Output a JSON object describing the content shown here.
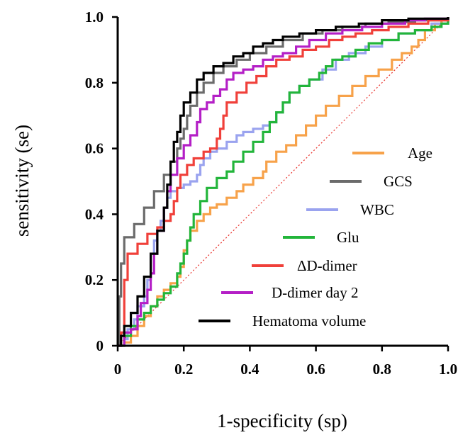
{
  "chart_data": {
    "type": "line",
    "title": "",
    "xlabel": "1-specificity (sp)",
    "ylabel": "sensitivity (se)",
    "xlim": [
      0,
      1
    ],
    "ylim": [
      0,
      1
    ],
    "x_ticks": [
      "0",
      "0.2",
      "0.4",
      "0.6",
      "0.8",
      "1.0"
    ],
    "y_ticks": [
      "0",
      "0.2",
      "0.4",
      "0.6",
      "0.8",
      "1.0"
    ],
    "grid": false,
    "legend_position": "bottom-right",
    "reference_line": {
      "from": [
        0,
        0
      ],
      "to": [
        1,
        1
      ],
      "color": "#e8302a",
      "style": "dotted"
    },
    "series": [
      {
        "name": "Age",
        "color": "#f7a24a",
        "points": [
          [
            0,
            0
          ],
          [
            0.02,
            0.01
          ],
          [
            0.04,
            0.03
          ],
          [
            0.06,
            0.06
          ],
          [
            0.08,
            0.09
          ],
          [
            0.1,
            0.12
          ],
          [
            0.12,
            0.15
          ],
          [
            0.14,
            0.17
          ],
          [
            0.16,
            0.19
          ],
          [
            0.18,
            0.21
          ],
          [
            0.19,
            0.24
          ],
          [
            0.2,
            0.26
          ],
          [
            0.2,
            0.29
          ],
          [
            0.21,
            0.32
          ],
          [
            0.22,
            0.35
          ],
          [
            0.24,
            0.38
          ],
          [
            0.26,
            0.4
          ],
          [
            0.28,
            0.42
          ],
          [
            0.3,
            0.43
          ],
          [
            0.33,
            0.45
          ],
          [
            0.36,
            0.47
          ],
          [
            0.38,
            0.49
          ],
          [
            0.41,
            0.51
          ],
          [
            0.44,
            0.53
          ],
          [
            0.45,
            0.56
          ],
          [
            0.48,
            0.59
          ],
          [
            0.51,
            0.61
          ],
          [
            0.54,
            0.64
          ],
          [
            0.57,
            0.67
          ],
          [
            0.6,
            0.7
          ],
          [
            0.63,
            0.73
          ],
          [
            0.67,
            0.76
          ],
          [
            0.71,
            0.79
          ],
          [
            0.75,
            0.82
          ],
          [
            0.79,
            0.84
          ],
          [
            0.83,
            0.87
          ],
          [
            0.86,
            0.89
          ],
          [
            0.89,
            0.91
          ],
          [
            0.91,
            0.93
          ],
          [
            0.93,
            0.96
          ],
          [
            0.96,
            0.98
          ],
          [
            0.98,
            0.99
          ],
          [
            1.0,
            1.0
          ]
        ]
      },
      {
        "name": "GCS",
        "color": "#6b6b6b",
        "points": [
          [
            0,
            0
          ],
          [
            0.005,
            0.15
          ],
          [
            0.01,
            0.25
          ],
          [
            0.02,
            0.33
          ],
          [
            0.05,
            0.37
          ],
          [
            0.08,
            0.42
          ],
          [
            0.11,
            0.47
          ],
          [
            0.14,
            0.52
          ],
          [
            0.16,
            0.56
          ],
          [
            0.18,
            0.6
          ],
          [
            0.19,
            0.63
          ],
          [
            0.2,
            0.66
          ],
          [
            0.21,
            0.7
          ],
          [
            0.22,
            0.73
          ],
          [
            0.24,
            0.77
          ],
          [
            0.26,
            0.8
          ],
          [
            0.29,
            0.83
          ],
          [
            0.32,
            0.85
          ],
          [
            0.36,
            0.87
          ],
          [
            0.4,
            0.89
          ],
          [
            0.45,
            0.91
          ],
          [
            0.5,
            0.93
          ],
          [
            0.56,
            0.95
          ],
          [
            0.62,
            0.96
          ],
          [
            0.68,
            0.97
          ],
          [
            0.75,
            0.98
          ],
          [
            0.82,
            0.985
          ],
          [
            0.9,
            0.99
          ],
          [
            1.0,
            1.0
          ]
        ]
      },
      {
        "name": "WBC",
        "color": "#9aa3ef",
        "points": [
          [
            0,
            0
          ],
          [
            0.02,
            0.02
          ],
          [
            0.03,
            0.05
          ],
          [
            0.05,
            0.08
          ],
          [
            0.06,
            0.12
          ],
          [
            0.08,
            0.15
          ],
          [
            0.09,
            0.2
          ],
          [
            0.1,
            0.24
          ],
          [
            0.1,
            0.28
          ],
          [
            0.11,
            0.32
          ],
          [
            0.12,
            0.35
          ],
          [
            0.13,
            0.38
          ],
          [
            0.14,
            0.42
          ],
          [
            0.15,
            0.45
          ],
          [
            0.16,
            0.47
          ],
          [
            0.18,
            0.48
          ],
          [
            0.2,
            0.49
          ],
          [
            0.22,
            0.5
          ],
          [
            0.24,
            0.52
          ],
          [
            0.25,
            0.55
          ],
          [
            0.26,
            0.57
          ],
          [
            0.28,
            0.59
          ],
          [
            0.3,
            0.6
          ],
          [
            0.33,
            0.62
          ],
          [
            0.36,
            0.64
          ],
          [
            0.38,
            0.65
          ],
          [
            0.41,
            0.66
          ],
          [
            0.44,
            0.67
          ],
          [
            0.46,
            0.68
          ],
          [
            0.48,
            0.71
          ],
          [
            0.5,
            0.74
          ],
          [
            0.52,
            0.77
          ],
          [
            0.55,
            0.79
          ],
          [
            0.58,
            0.81
          ],
          [
            0.62,
            0.84
          ],
          [
            0.66,
            0.87
          ],
          [
            0.7,
            0.89
          ],
          [
            0.75,
            0.91
          ],
          [
            0.8,
            0.93
          ],
          [
            0.85,
            0.95
          ],
          [
            0.9,
            0.96
          ],
          [
            0.95,
            0.98
          ],
          [
            1.0,
            1.0
          ]
        ]
      },
      {
        "name": "Glu",
        "color": "#22b53a",
        "points": [
          [
            0,
            0
          ],
          [
            0.02,
            0.03
          ],
          [
            0.04,
            0.06
          ],
          [
            0.06,
            0.08
          ],
          [
            0.08,
            0.1
          ],
          [
            0.1,
            0.12
          ],
          [
            0.12,
            0.14
          ],
          [
            0.14,
            0.16
          ],
          [
            0.16,
            0.18
          ],
          [
            0.18,
            0.22
          ],
          [
            0.19,
            0.25
          ],
          [
            0.2,
            0.28
          ],
          [
            0.21,
            0.32
          ],
          [
            0.22,
            0.36
          ],
          [
            0.23,
            0.4
          ],
          [
            0.25,
            0.44
          ],
          [
            0.27,
            0.48
          ],
          [
            0.3,
            0.51
          ],
          [
            0.33,
            0.53
          ],
          [
            0.35,
            0.56
          ],
          [
            0.38,
            0.59
          ],
          [
            0.41,
            0.62
          ],
          [
            0.44,
            0.65
          ],
          [
            0.46,
            0.68
          ],
          [
            0.48,
            0.71
          ],
          [
            0.5,
            0.74
          ],
          [
            0.52,
            0.77
          ],
          [
            0.55,
            0.79
          ],
          [
            0.58,
            0.81
          ],
          [
            0.61,
            0.83
          ],
          [
            0.63,
            0.85
          ],
          [
            0.65,
            0.87
          ],
          [
            0.68,
            0.88
          ],
          [
            0.72,
            0.9
          ],
          [
            0.76,
            0.92
          ],
          [
            0.8,
            0.93
          ],
          [
            0.85,
            0.95
          ],
          [
            0.9,
            0.96
          ],
          [
            0.95,
            0.97
          ],
          [
            0.98,
            0.98
          ],
          [
            1.0,
            1.0
          ]
        ]
      },
      {
        "name": "ΔD-dimer",
        "color": "#f0403a",
        "points": [
          [
            0,
            0
          ],
          [
            0.01,
            0.04
          ],
          [
            0.02,
            0.1
          ],
          [
            0.02,
            0.2
          ],
          [
            0.03,
            0.28
          ],
          [
            0.06,
            0.31
          ],
          [
            0.09,
            0.34
          ],
          [
            0.12,
            0.36
          ],
          [
            0.14,
            0.38
          ],
          [
            0.16,
            0.4
          ],
          [
            0.17,
            0.44
          ],
          [
            0.18,
            0.48
          ],
          [
            0.19,
            0.52
          ],
          [
            0.21,
            0.55
          ],
          [
            0.23,
            0.57
          ],
          [
            0.26,
            0.59
          ],
          [
            0.28,
            0.6
          ],
          [
            0.3,
            0.63
          ],
          [
            0.31,
            0.66
          ],
          [
            0.32,
            0.7
          ],
          [
            0.33,
            0.74
          ],
          [
            0.36,
            0.77
          ],
          [
            0.39,
            0.8
          ],
          [
            0.42,
            0.82
          ],
          [
            0.45,
            0.85
          ],
          [
            0.48,
            0.87
          ],
          [
            0.52,
            0.88
          ],
          [
            0.56,
            0.9
          ],
          [
            0.6,
            0.91
          ],
          [
            0.64,
            0.93
          ],
          [
            0.68,
            0.94
          ],
          [
            0.72,
            0.95
          ],
          [
            0.77,
            0.96
          ],
          [
            0.82,
            0.97
          ],
          [
            0.88,
            0.98
          ],
          [
            0.94,
            0.99
          ],
          [
            1.0,
            1.0
          ]
        ]
      },
      {
        "name": "D-dimer day 2",
        "color": "#b41fc6",
        "points": [
          [
            0,
            0
          ],
          [
            0.02,
            0.04
          ],
          [
            0.04,
            0.05
          ],
          [
            0.06,
            0.09
          ],
          [
            0.07,
            0.13
          ],
          [
            0.09,
            0.17
          ],
          [
            0.1,
            0.22
          ],
          [
            0.11,
            0.28
          ],
          [
            0.12,
            0.35
          ],
          [
            0.14,
            0.42
          ],
          [
            0.15,
            0.47
          ],
          [
            0.16,
            0.52
          ],
          [
            0.18,
            0.57
          ],
          [
            0.2,
            0.61
          ],
          [
            0.22,
            0.64
          ],
          [
            0.24,
            0.68
          ],
          [
            0.25,
            0.72
          ],
          [
            0.27,
            0.74
          ],
          [
            0.29,
            0.76
          ],
          [
            0.31,
            0.78
          ],
          [
            0.33,
            0.81
          ],
          [
            0.35,
            0.83
          ],
          [
            0.38,
            0.84
          ],
          [
            0.41,
            0.85
          ],
          [
            0.44,
            0.87
          ],
          [
            0.47,
            0.88
          ],
          [
            0.5,
            0.89
          ],
          [
            0.54,
            0.91
          ],
          [
            0.58,
            0.93
          ],
          [
            0.63,
            0.95
          ],
          [
            0.68,
            0.96
          ],
          [
            0.74,
            0.97
          ],
          [
            0.8,
            0.98
          ],
          [
            0.87,
            0.99
          ],
          [
            0.93,
            0.995
          ],
          [
            1.0,
            1.0
          ]
        ]
      },
      {
        "name": "Hematoma volume",
        "color": "#000000",
        "points": [
          [
            0,
            0
          ],
          [
            0.01,
            0.03
          ],
          [
            0.02,
            0.06
          ],
          [
            0.04,
            0.1
          ],
          [
            0.06,
            0.15
          ],
          [
            0.08,
            0.21
          ],
          [
            0.1,
            0.28
          ],
          [
            0.12,
            0.35
          ],
          [
            0.14,
            0.42
          ],
          [
            0.15,
            0.49
          ],
          [
            0.16,
            0.56
          ],
          [
            0.17,
            0.62
          ],
          [
            0.18,
            0.65
          ],
          [
            0.19,
            0.7
          ],
          [
            0.2,
            0.74
          ],
          [
            0.22,
            0.77
          ],
          [
            0.24,
            0.81
          ],
          [
            0.26,
            0.83
          ],
          [
            0.29,
            0.85
          ],
          [
            0.32,
            0.86
          ],
          [
            0.35,
            0.88
          ],
          [
            0.38,
            0.89
          ],
          [
            0.41,
            0.91
          ],
          [
            0.44,
            0.92
          ],
          [
            0.47,
            0.93
          ],
          [
            0.5,
            0.94
          ],
          [
            0.55,
            0.95
          ],
          [
            0.6,
            0.96
          ],
          [
            0.66,
            0.97
          ],
          [
            0.73,
            0.98
          ],
          [
            0.8,
            0.99
          ],
          [
            0.88,
            0.995
          ],
          [
            1.0,
            1.0
          ]
        ]
      }
    ]
  }
}
